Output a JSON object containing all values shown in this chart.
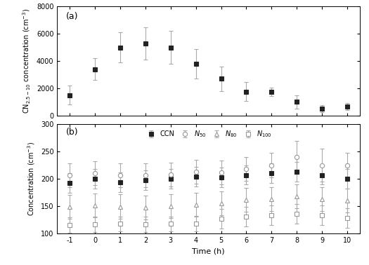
{
  "time": [
    -1,
    0,
    1,
    2,
    3,
    4,
    5,
    6,
    7,
    8,
    9,
    10
  ],
  "panel_a": {
    "y": [
      1500,
      3400,
      5000,
      5300,
      5000,
      3800,
      2700,
      1750,
      1750,
      1000,
      500,
      650
    ],
    "yerr": [
      700,
      800,
      1100,
      1200,
      1200,
      1100,
      900,
      700,
      300,
      500,
      250,
      250
    ],
    "ylabel": "CN$_{2.5-10}$ concentration (cm$^{-3}$)",
    "ylim": [
      0,
      8000
    ],
    "yticks": [
      0,
      2000,
      4000,
      6000,
      8000
    ],
    "label": "(a)"
  },
  "panel_b": {
    "CCN_y": [
      192,
      200,
      193,
      197,
      200,
      204,
      203,
      207,
      210,
      213,
      207,
      200
    ],
    "CCN_yerr": [
      18,
      18,
      18,
      18,
      18,
      18,
      18,
      18,
      18,
      18,
      18,
      18
    ],
    "N50_y": [
      206,
      210,
      206,
      206,
      208,
      213,
      212,
      218,
      225,
      240,
      225,
      225
    ],
    "N50_yerr": [
      22,
      22,
      22,
      22,
      22,
      22,
      22,
      22,
      22,
      30,
      30,
      22
    ],
    "N80_y": [
      148,
      151,
      149,
      147,
      150,
      152,
      155,
      161,
      163,
      168,
      163,
      160
    ],
    "N80_yerr": [
      22,
      22,
      22,
      22,
      22,
      22,
      22,
      22,
      22,
      22,
      22,
      22
    ],
    "N100_y": [
      115,
      116,
      117,
      116,
      117,
      118,
      127,
      130,
      133,
      135,
      133,
      128
    ],
    "N100_yerr": [
      14,
      14,
      14,
      14,
      14,
      14,
      18,
      18,
      18,
      18,
      18,
      18
    ],
    "ylabel": "Concentration (cm$^{-3}$)",
    "ylim": [
      100,
      300
    ],
    "yticks": [
      100,
      150,
      200,
      250,
      300
    ],
    "label": "(b)"
  },
  "xlabel": "Time (h)",
  "xticks": [
    -1,
    0,
    1,
    2,
    3,
    4,
    5,
    6,
    7,
    8,
    9,
    10
  ],
  "color_marker_filled": "#222222",
  "color_line": "#999999",
  "color_errorbar": "#aaaaaa",
  "background": "#ffffff"
}
